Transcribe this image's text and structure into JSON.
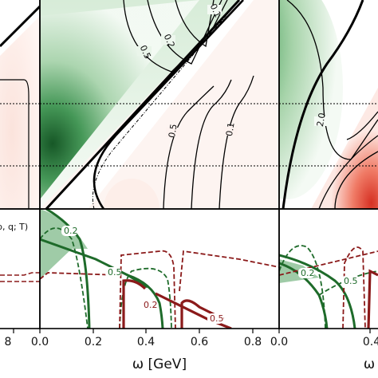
{
  "colors": {
    "green_dark": "#1e6b2a",
    "green_fill": "#4a9a5a",
    "red_dark": "#8b1a1a",
    "red_fill": "#e0483a",
    "frame": "#000000"
  },
  "chart_data": [
    {
      "type": "heatmap",
      "panel": "top-left",
      "contours": [],
      "xlim": [
        0,
        0.9
      ],
      "hlines_y": [
        0.45,
        0.75
      ]
    },
    {
      "type": "heatmap",
      "panel": "top-middle",
      "contour_labels": [
        "0.5",
        "0.2",
        "0.1",
        "0.5",
        "0.1"
      ],
      "colormap": "green-white-red",
      "hlines_y": [
        0.45,
        0.75
      ]
    },
    {
      "type": "heatmap",
      "panel": "top-right",
      "contour_labels": [
        "2.0"
      ],
      "colormap": "green-white-red",
      "hlines_y": [
        0.45,
        0.75
      ]
    },
    {
      "type": "line",
      "panel": "bottom-left",
      "visible_label": "ρ, q; T)",
      "xticks": [
        0.8
      ],
      "xtick_labels": [
        "8"
      ]
    },
    {
      "type": "line",
      "panel": "bottom-middle",
      "xlabel": "ω [GeV]",
      "xlim": [
        0.0,
        0.9
      ],
      "xticks": [
        0.0,
        0.2,
        0.4,
        0.6,
        0.8
      ],
      "xtick_labels": [
        "0.0",
        "0.2",
        "0.4",
        "0.6",
        "0.8"
      ],
      "series": [
        {
          "name": "0.2",
          "color": "green",
          "style": "solid",
          "x": [
            0.0,
            0.05,
            0.1,
            0.15,
            0.18,
            0.19
          ],
          "y": [
            1.0,
            0.95,
            0.8,
            0.55,
            0.2,
            0.0
          ]
        },
        {
          "name": "0.5",
          "color": "green",
          "style": "solid",
          "x": [
            0.0,
            0.1,
            0.2,
            0.3,
            0.36
          ],
          "y": [
            0.55,
            0.45,
            0.35,
            0.2,
            0.1
          ]
        },
        {
          "name": "0.5-dashed",
          "color": "green",
          "style": "dashed",
          "x": [
            0.25,
            0.3,
            0.36,
            0.42,
            0.47,
            0.5
          ],
          "y": [
            0.0,
            0.45,
            0.6,
            0.6,
            0.4,
            0.0
          ]
        },
        {
          "name": "0.2",
          "color": "red",
          "style": "solid",
          "x": [
            0.33,
            0.34,
            0.38,
            0.44,
            0.48,
            0.5
          ],
          "y": [
            0.0,
            0.25,
            0.35,
            0.25,
            0.1,
            0.0
          ]
        },
        {
          "name": "0.5",
          "color": "red",
          "style": "solid",
          "x": [
            0.42,
            0.5,
            0.58,
            0.66,
            0.74
          ],
          "y": [
            0.3,
            0.22,
            0.14,
            0.06,
            0.0
          ]
        },
        {
          "name": "red-dashed",
          "color": "red",
          "style": "dashed",
          "x": [
            0.33,
            0.35,
            0.45,
            0.5,
            0.52,
            0.57,
            0.62,
            0.9
          ],
          "y": [
            0.0,
            0.35,
            0.3,
            0.4,
            0.6,
            0.5,
            0.5,
            0.55
          ]
        }
      ],
      "series_labels": [
        "0.2",
        "0.5",
        "0.2",
        "0.5"
      ]
    },
    {
      "type": "line",
      "panel": "bottom-right",
      "xlabel": "ω",
      "xticks": [
        0.0,
        0.4
      ],
      "xtick_labels": [
        "0.0",
        "0.4"
      ],
      "series_labels": [
        "0.2",
        "0.5"
      ]
    }
  ]
}
